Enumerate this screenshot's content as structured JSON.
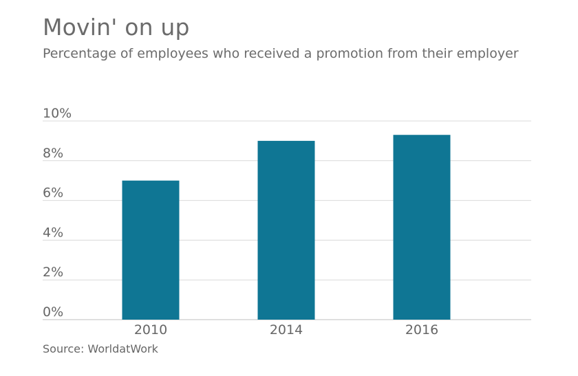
{
  "title": "Movin' on up",
  "subtitle": "Percentage of employees who received a promotion from their employer",
  "source": "Source: WorldatWork",
  "colors": {
    "bar": "#0f7694",
    "grid": "#d9d9d9",
    "axis": "#bfbfbf",
    "text": "#666666"
  },
  "chart_data": {
    "type": "bar",
    "categories": [
      "2010",
      "2014",
      "2016"
    ],
    "values": [
      7.0,
      9.0,
      9.3
    ],
    "ylim": [
      0,
      10
    ],
    "yticks": [
      0,
      2,
      4,
      6,
      8,
      10
    ],
    "ytick_labels": [
      "0%",
      "2%",
      "4%",
      "6%",
      "8%",
      "10%"
    ],
    "grid": true
  }
}
